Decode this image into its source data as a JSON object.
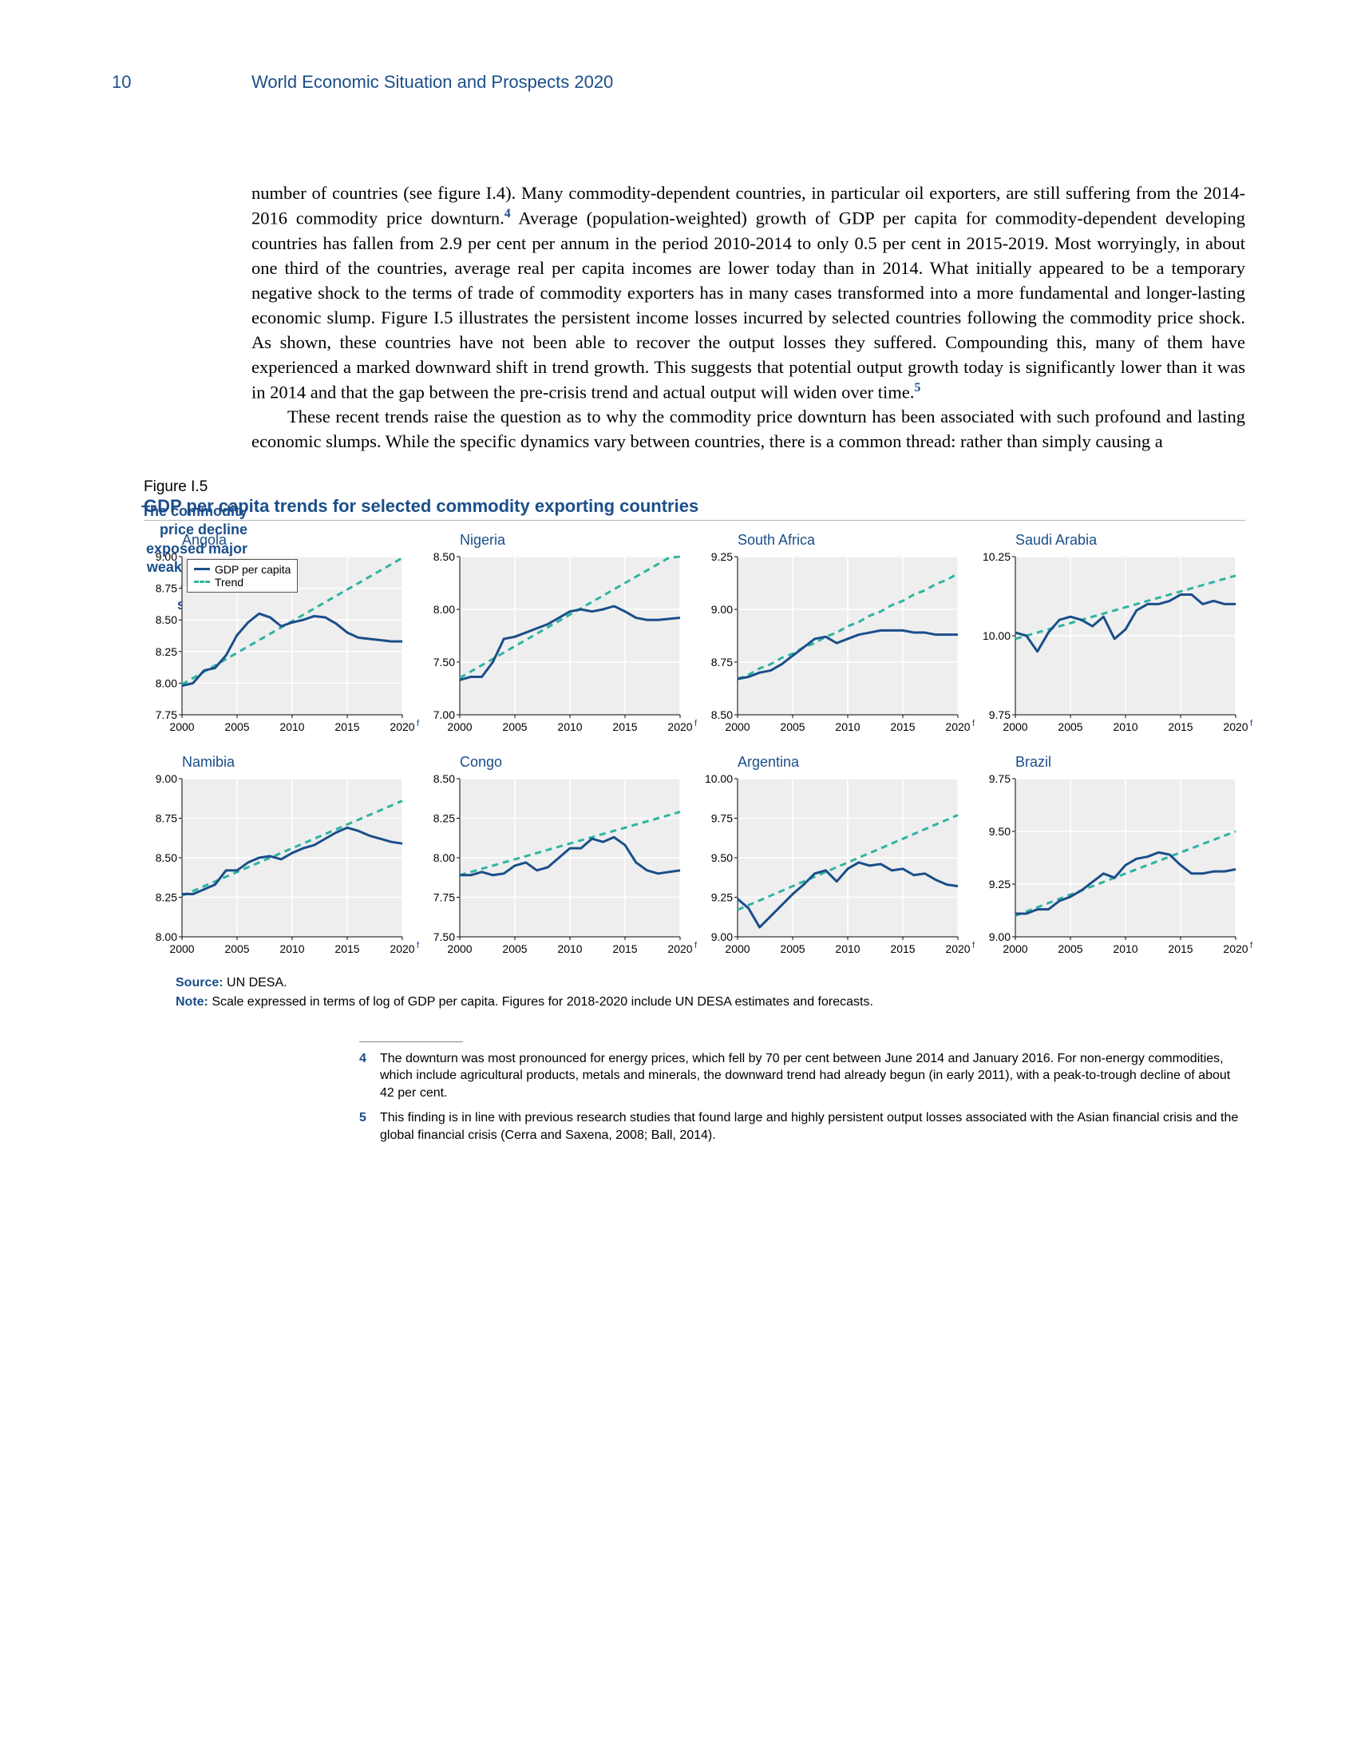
{
  "page_number": "10",
  "doc_title": "World Economic Situation and Prospects 2020",
  "body_para_1": "number of countries (see figure I.4). Many commodity-dependent countries, in particular oil exporters, are still suffering from the 2014-2016 commodity price downturn.",
  "sup4": "4",
  "body_para_1b": " Average (population-weighted) growth of GDP per capita for commodity-dependent developing countries has fallen from 2.9 per cent per annum in the period 2010-2014 to only 0.5 per cent in 2015-2019. Most worryingly, in about one third of the countries, average real per capita incomes are lower today than in 2014. What initially appeared to be a temporary negative shock to the terms of trade of commodity exporters has in many cases transformed into a more fundamental and longer-lasting economic slump. Figure I.5 illustrates the persistent income losses incurred by selected countries following the commodity price shock. As shown, these countries have not been able to recover the output losses they suffered. Compounding this, many of them have experienced a marked downward shift in trend growth. This suggests that potential output growth today is significantly lower than it was in 2014 and that the gap between the pre-crisis trend and actual output will widen over time.",
  "sup5": "5",
  "body_para_2": "These recent trends raise the question as to why the commodity price downturn has been associated with such profound and lasting economic slumps. While the specific dynamics vary between countries, there is a common thread: rather than simply causing a",
  "side_note": "The commodity price decline exposed major weaknesses in economic structures",
  "figure": {
    "label": "Figure I.5",
    "title": "GDP per capita trends for selected commodity exporting countries",
    "legend_gdp": "GDP per capita",
    "legend_trend": "Trend",
    "x_ticks": [
      "2000",
      "2005",
      "2010",
      "2015",
      "2020"
    ],
    "x_superscript_f": "f",
    "colors": {
      "plot_bg": "#eeeeee",
      "grid": "#ffffff",
      "gdp_line": "#1a4e8a",
      "trend_line": "#2eb5a0",
      "title_color": "#1a4e8a",
      "axis_text": "#000000"
    },
    "line_width_gdp": 3,
    "line_width_trend": 3,
    "trend_dash": "8,6",
    "panels": [
      {
        "name": "Angola",
        "ylim": [
          7.75,
          9.0
        ],
        "ytick_step": 0.25,
        "gdp": [
          7.98,
          8.0,
          8.1,
          8.12,
          8.22,
          8.38,
          8.48,
          8.55,
          8.52,
          8.45,
          8.48,
          8.5,
          8.53,
          8.52,
          8.47,
          8.4,
          8.36,
          8.35,
          8.34,
          8.33,
          8.33
        ],
        "trend": [
          7.99,
          8.04,
          8.09,
          8.14,
          8.19,
          8.24,
          8.29,
          8.34,
          8.39,
          8.44,
          8.49,
          8.54,
          8.59,
          8.64,
          8.69,
          8.74,
          8.79,
          8.84,
          8.89,
          8.94,
          8.99
        ]
      },
      {
        "name": "Nigeria",
        "ylim": [
          7.0,
          8.5
        ],
        "ytick_step": 0.5,
        "gdp": [
          7.33,
          7.36,
          7.36,
          7.5,
          7.72,
          7.74,
          7.78,
          7.82,
          7.86,
          7.92,
          7.98,
          8.0,
          7.98,
          8.0,
          8.03,
          7.98,
          7.92,
          7.9,
          7.9,
          7.91,
          7.92
        ],
        "trend": [
          7.35,
          7.41,
          7.47,
          7.53,
          7.59,
          7.65,
          7.71,
          7.77,
          7.83,
          7.89,
          7.95,
          8.01,
          8.07,
          8.13,
          8.19,
          8.25,
          8.31,
          8.37,
          8.43,
          8.49,
          8.5
        ]
      },
      {
        "name": "South Africa",
        "ylim": [
          8.5,
          9.25
        ],
        "ytick_step": 0.25,
        "gdp": [
          8.67,
          8.68,
          8.7,
          8.71,
          8.74,
          8.78,
          8.82,
          8.86,
          8.87,
          8.84,
          8.86,
          8.88,
          8.89,
          8.9,
          8.9,
          8.9,
          8.89,
          8.89,
          8.88,
          8.88,
          8.88
        ],
        "trend": [
          8.67,
          8.69,
          8.72,
          8.74,
          8.77,
          8.79,
          8.82,
          8.84,
          8.87,
          8.89,
          8.92,
          8.94,
          8.97,
          8.99,
          9.02,
          9.04,
          9.07,
          9.09,
          9.12,
          9.14,
          9.17
        ]
      },
      {
        "name": "Saudi Arabia",
        "ylim": [
          9.75,
          10.25
        ],
        "ytick_step": 0.25,
        "gdp": [
          10.01,
          10.0,
          9.95,
          10.01,
          10.05,
          10.06,
          10.05,
          10.03,
          10.06,
          9.99,
          10.02,
          10.08,
          10.1,
          10.1,
          10.11,
          10.13,
          10.13,
          10.1,
          10.11,
          10.1,
          10.1
        ],
        "trend": [
          9.99,
          10.0,
          10.01,
          10.02,
          10.03,
          10.04,
          10.05,
          10.06,
          10.07,
          10.08,
          10.09,
          10.1,
          10.11,
          10.12,
          10.13,
          10.14,
          10.15,
          10.16,
          10.17,
          10.18,
          10.19
        ]
      },
      {
        "name": "Namibia",
        "ylim": [
          8.0,
          9.0
        ],
        "ytick_step": 0.25,
        "gdp": [
          8.27,
          8.27,
          8.3,
          8.33,
          8.42,
          8.42,
          8.47,
          8.5,
          8.51,
          8.49,
          8.53,
          8.56,
          8.58,
          8.62,
          8.66,
          8.69,
          8.67,
          8.64,
          8.62,
          8.6,
          8.59
        ],
        "trend": [
          8.26,
          8.29,
          8.32,
          8.35,
          8.38,
          8.41,
          8.44,
          8.47,
          8.5,
          8.53,
          8.56,
          8.59,
          8.62,
          8.65,
          8.68,
          8.71,
          8.74,
          8.77,
          8.8,
          8.83,
          8.86
        ]
      },
      {
        "name": "Congo",
        "ylim": [
          7.5,
          8.5
        ],
        "ytick_step": 0.25,
        "gdp": [
          7.89,
          7.89,
          7.91,
          7.89,
          7.9,
          7.95,
          7.97,
          7.92,
          7.94,
          8.0,
          8.06,
          8.06,
          8.12,
          8.1,
          8.13,
          8.08,
          7.97,
          7.92,
          7.9,
          7.91,
          7.92
        ],
        "trend": [
          7.89,
          7.91,
          7.93,
          7.95,
          7.97,
          7.99,
          8.01,
          8.03,
          8.05,
          8.07,
          8.09,
          8.11,
          8.13,
          8.15,
          8.17,
          8.19,
          8.21,
          8.23,
          8.25,
          8.27,
          8.29
        ]
      },
      {
        "name": "Argentina",
        "ylim": [
          9.0,
          10.0
        ],
        "ytick_step": 0.25,
        "gdp": [
          9.24,
          9.18,
          9.06,
          9.13,
          9.2,
          9.27,
          9.33,
          9.4,
          9.42,
          9.35,
          9.43,
          9.47,
          9.45,
          9.46,
          9.42,
          9.43,
          9.39,
          9.4,
          9.36,
          9.33,
          9.32
        ],
        "trend": [
          9.17,
          9.2,
          9.23,
          9.26,
          9.29,
          9.32,
          9.35,
          9.38,
          9.41,
          9.44,
          9.47,
          9.5,
          9.53,
          9.56,
          9.59,
          9.62,
          9.65,
          9.68,
          9.71,
          9.74,
          9.77
        ]
      },
      {
        "name": "Brazil",
        "ylim": [
          9.0,
          9.75
        ],
        "ytick_step": 0.25,
        "gdp": [
          9.11,
          9.11,
          9.13,
          9.13,
          9.17,
          9.19,
          9.22,
          9.26,
          9.3,
          9.28,
          9.34,
          9.37,
          9.38,
          9.4,
          9.39,
          9.34,
          9.3,
          9.3,
          9.31,
          9.31,
          9.32
        ],
        "trend": [
          9.1,
          9.12,
          9.14,
          9.16,
          9.18,
          9.2,
          9.22,
          9.24,
          9.26,
          9.28,
          9.3,
          9.32,
          9.34,
          9.36,
          9.38,
          9.4,
          9.42,
          9.44,
          9.46,
          9.48,
          9.5
        ]
      }
    ]
  },
  "source_label": "Source:",
  "source_text": " UN DESA.",
  "note_label": "Note:",
  "note_text": " Scale expressed in terms of log of GDP per capita. Figures for 2018-2020 include UN DESA estimates and forecasts.",
  "footnote4_num": "4",
  "footnote4": "The downturn was most pronounced for energy prices, which fell by 70 per cent between June 2014 and January 2016. For non-energy commodities, which include agricultural products, metals and minerals, the downward trend had already begun (in early 2011), with a peak-to-trough decline of about 42 per cent.",
  "footnote5_num": "5",
  "footnote5": "This finding is in line with previous research studies that found large and highly persistent output losses associated with the Asian financial crisis and the global financial crisis (Cerra and Saxena, 2008; Ball, 2014)."
}
